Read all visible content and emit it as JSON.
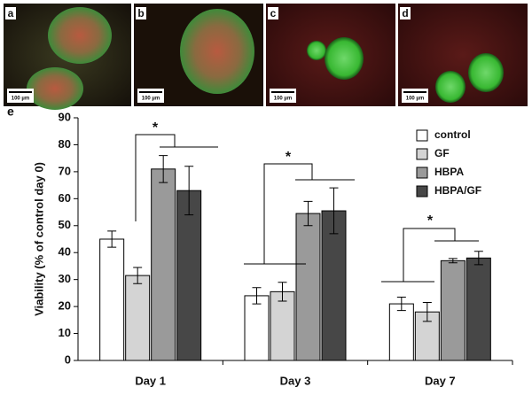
{
  "panels": {
    "labels": [
      "a",
      "b",
      "c",
      "d"
    ],
    "scale_bar": "100 µm"
  },
  "chart_data": {
    "type": "bar",
    "panel_label": "e",
    "y_label": "Viability (% of control day 0)",
    "categories": [
      "Day 1",
      "Day 3",
      "Day 7"
    ],
    "series": [
      {
        "name": "control",
        "color": "#ffffff",
        "values": [
          45,
          24,
          21
        ],
        "errors": [
          3,
          3,
          2.5
        ]
      },
      {
        "name": "GF",
        "color": "#d4d4d4",
        "values": [
          31.5,
          25.5,
          18
        ],
        "errors": [
          3,
          3.5,
          3.5
        ]
      },
      {
        "name": "HBPA",
        "color": "#9a9a9a",
        "values": [
          71,
          54.5,
          37
        ],
        "errors": [
          5,
          4.5,
          0.8
        ]
      },
      {
        "name": "HBPA/GF",
        "color": "#474747",
        "values": [
          63,
          55.5,
          38
        ],
        "errors": [
          9,
          8.5,
          2.5
        ]
      }
    ],
    "ylim": [
      0,
      90
    ],
    "yticks": [
      0,
      10,
      20,
      30,
      40,
      50,
      60,
      70,
      80,
      90
    ],
    "legend": "upper right",
    "annotations": [
      "*",
      "*",
      "*"
    ]
  }
}
